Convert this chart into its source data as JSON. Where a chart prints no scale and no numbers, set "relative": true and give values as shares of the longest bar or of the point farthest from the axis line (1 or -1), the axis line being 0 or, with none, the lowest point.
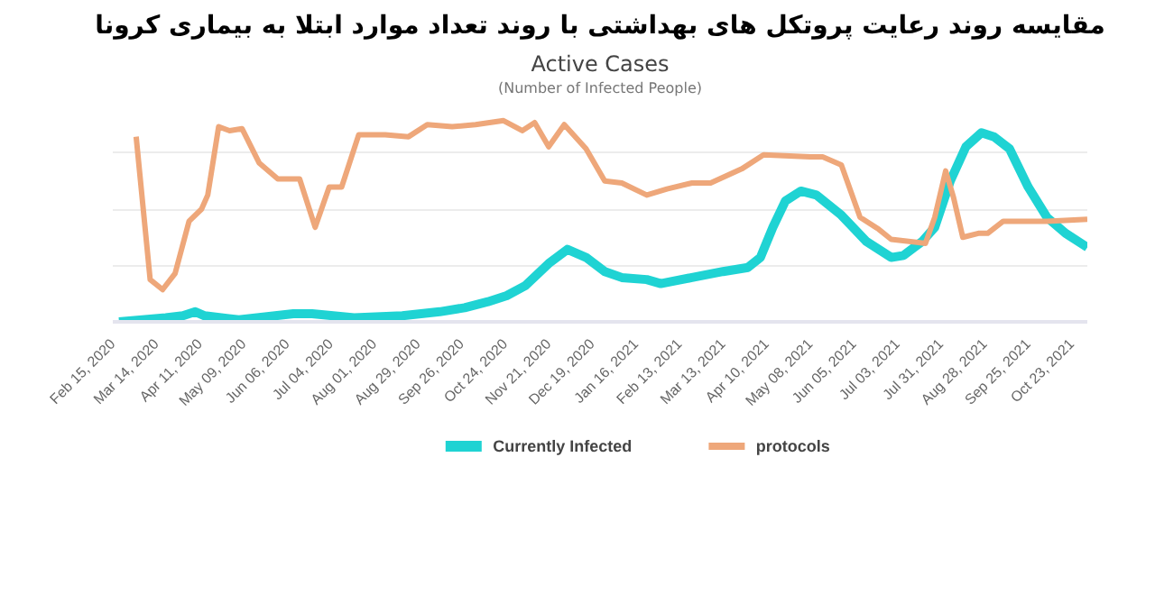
{
  "chart_data": {
    "type": "line",
    "title": "مقایسه روند رعایت پروتکل های بهداشتی با روند تعداد موارد ابتلا به بیماری کرونا",
    "subtitle": "Active Cases",
    "annotations": [
      "(Number of Infected People)"
    ],
    "relative": true,
    "grid": "y",
    "legend": "bottom",
    "xlim": [
      "2020-02-15",
      "2021-11-02"
    ],
    "xticks": [
      {
        "value": "2020-02-15",
        "label": "Feb 15, 2020"
      },
      {
        "value": "2020-03-14",
        "label": "Mar 14, 2020"
      },
      {
        "value": "2020-04-11",
        "label": "Apr 11, 2020"
      },
      {
        "value": "2020-05-09",
        "label": "May 09, 2020"
      },
      {
        "value": "2020-06-06",
        "label": "Jun 06, 2020"
      },
      {
        "value": "2020-07-04",
        "label": "Jul 04, 2020"
      },
      {
        "value": "2020-08-01",
        "label": "Aug 01, 2020"
      },
      {
        "value": "2020-08-29",
        "label": "Aug 29, 2020"
      },
      {
        "value": "2020-09-26",
        "label": "Sep 26, 2020"
      },
      {
        "value": "2020-10-24",
        "label": "Oct 24, 2020"
      },
      {
        "value": "2020-11-21",
        "label": "Nov 21, 2020"
      },
      {
        "value": "2020-12-19",
        "label": "Dec 19, 2020"
      },
      {
        "value": "2021-01-16",
        "label": "Jan 16, 2021"
      },
      {
        "value": "2021-02-13",
        "label": "Feb 13, 2021"
      },
      {
        "value": "2021-03-13",
        "label": "Mar 13, 2021"
      },
      {
        "value": "2021-04-10",
        "label": "Apr 10, 2021"
      },
      {
        "value": "2021-05-08",
        "label": "May 08, 2021"
      },
      {
        "value": "2021-06-05",
        "label": "Jun 05, 2021"
      },
      {
        "value": "2021-07-03",
        "label": "Jul 03, 2021"
      },
      {
        "value": "2021-07-31",
        "label": "Jul 31, 2021"
      },
      {
        "value": "2021-08-28",
        "label": "Aug 28, 2021"
      },
      {
        "value": "2021-09-25",
        "label": "Sep 25, 2021"
      },
      {
        "value": "2021-10-23",
        "label": "Oct 23, 2021"
      }
    ],
    "series": [
      {
        "name": "Currently Infected",
        "color": "#1fd3d3",
        "x": [
          "2020-02-19",
          "2020-03-20",
          "2020-03-31",
          "2020-04-08",
          "2020-04-14",
          "2020-05-06",
          "2020-06-10",
          "2020-06-22",
          "2020-07-19",
          "2020-08-19",
          "2020-09-12",
          "2020-09-28",
          "2020-10-13",
          "2020-10-25",
          "2020-11-06",
          "2020-11-21",
          "2020-12-03",
          "2020-12-15",
          "2020-12-27",
          "2021-01-07",
          "2021-01-23",
          "2021-02-01",
          "2021-02-21",
          "2021-03-13",
          "2021-03-29",
          "2021-04-06",
          "2021-04-14",
          "2021-04-22",
          "2021-05-02",
          "2021-05-12",
          "2021-05-28",
          "2021-06-13",
          "2021-06-29",
          "2021-07-07",
          "2021-07-19",
          "2021-07-27",
          "2021-08-06",
          "2021-08-16",
          "2021-08-26",
          "2021-09-03",
          "2021-09-13",
          "2021-09-25",
          "2021-10-07",
          "2021-10-19",
          "2021-11-02"
        ],
        "values": [
          0,
          0.02,
          0.03,
          0.05,
          0.03,
          0.01,
          0.04,
          0.04,
          0.02,
          0.03,
          0.05,
          0.07,
          0.1,
          0.13,
          0.18,
          0.29,
          0.36,
          0.32,
          0.25,
          0.22,
          0.21,
          0.19,
          0.22,
          0.25,
          0.27,
          0.32,
          0.47,
          0.6,
          0.65,
          0.63,
          0.53,
          0.4,
          0.32,
          0.33,
          0.4,
          0.47,
          0.7,
          0.87,
          0.94,
          0.92,
          0.86,
          0.67,
          0.52,
          0.44,
          0.37
        ]
      },
      {
        "name": "protocols",
        "color": "#eea77a",
        "x": [
          "2020-03-01",
          "2020-03-10",
          "2020-03-18",
          "2020-03-26",
          "2020-04-04",
          "2020-04-12",
          "2020-04-16",
          "2020-04-23",
          "2020-04-30",
          "2020-05-08",
          "2020-05-19",
          "2020-05-31",
          "2020-06-14",
          "2020-06-24",
          "2020-07-03",
          "2020-07-11",
          "2020-07-22",
          "2020-08-08",
          "2020-08-23",
          "2020-09-04",
          "2020-09-20",
          "2020-10-05",
          "2020-10-23",
          "2020-11-04",
          "2020-11-12",
          "2020-11-21",
          "2020-12-01",
          "2020-12-15",
          "2020-12-27",
          "2021-01-07",
          "2021-01-23",
          "2021-02-05",
          "2021-02-21",
          "2021-03-05",
          "2021-03-25",
          "2021-04-08",
          "2021-05-08",
          "2021-05-16",
          "2021-05-28",
          "2021-06-09",
          "2021-06-21",
          "2021-06-29",
          "2021-07-21",
          "2021-07-27",
          "2021-08-03",
          "2021-08-08",
          "2021-08-14",
          "2021-08-24",
          "2021-08-30",
          "2021-09-09",
          "2021-10-07",
          "2021-11-02"
        ],
        "values": [
          0.92,
          0.21,
          0.16,
          0.24,
          0.5,
          0.56,
          0.63,
          0.97,
          0.95,
          0.96,
          0.79,
          0.71,
          0.71,
          0.47,
          0.67,
          0.67,
          0.93,
          0.93,
          0.92,
          0.98,
          0.97,
          0.98,
          1,
          0.95,
          0.99,
          0.87,
          0.98,
          0.86,
          0.7,
          0.69,
          0.63,
          0.66,
          0.69,
          0.69,
          0.76,
          0.83,
          0.82,
          0.82,
          0.78,
          0.52,
          0.46,
          0.41,
          0.39,
          0.52,
          0.75,
          0.62,
          0.42,
          0.44,
          0.44,
          0.5,
          0.5,
          0.51
        ]
      }
    ]
  }
}
